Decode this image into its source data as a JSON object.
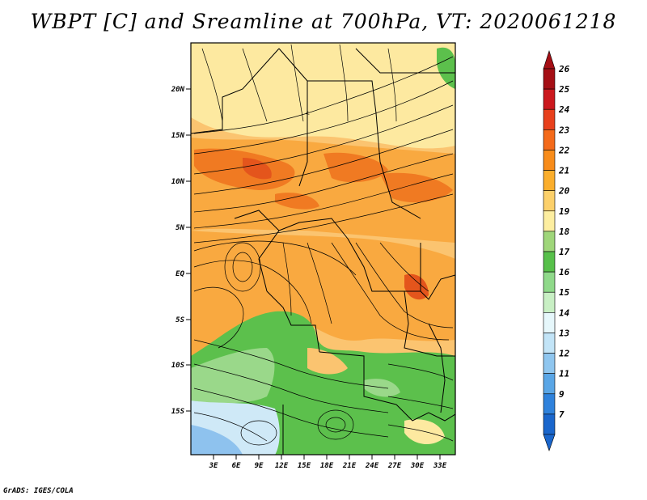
{
  "title": "WBPT [C] and Sreamline at 700hPa, VT: 2020061218",
  "credit": "GrADS: IGES/COLA",
  "map": {
    "lat_labels": [
      "20N",
      "15N",
      "10N",
      "5N",
      "EQ",
      "5S",
      "10S",
      "15S"
    ],
    "lon_labels": [
      "3E",
      "6E",
      "9E",
      "12E",
      "15E",
      "18E",
      "21E",
      "24E",
      "27E",
      "30E",
      "33E"
    ]
  },
  "colorbar": {
    "levels": [
      "26",
      "25",
      "24",
      "23",
      "22",
      "21",
      "20",
      "19",
      "18",
      "17",
      "16",
      "15",
      "14",
      "13",
      "12",
      "11",
      "9",
      "7"
    ],
    "colors": [
      "#a50f15",
      "#cb181d",
      "#e8401c",
      "#f46a1a",
      "#f88c1a",
      "#fbae2c",
      "#fcd06a",
      "#fdeea0",
      "#9fd67a",
      "#57c04a",
      "#8fd98a",
      "#c8efc4",
      "#e6f7fb",
      "#c2e4f7",
      "#8fc6ef",
      "#5aa6e6",
      "#2f82dc",
      "#1a66cc"
    ]
  },
  "field_colors": {
    "yellow": "#fde9a0",
    "orange_light": "#fbc470",
    "orange": "#f9a940",
    "orange_dark": "#f07a22",
    "red": "#e4551c",
    "green": "#5cc04c",
    "green_light": "#9ad88a",
    "blue_light": "#cfe9f7",
    "blue": "#8ec2ee"
  }
}
